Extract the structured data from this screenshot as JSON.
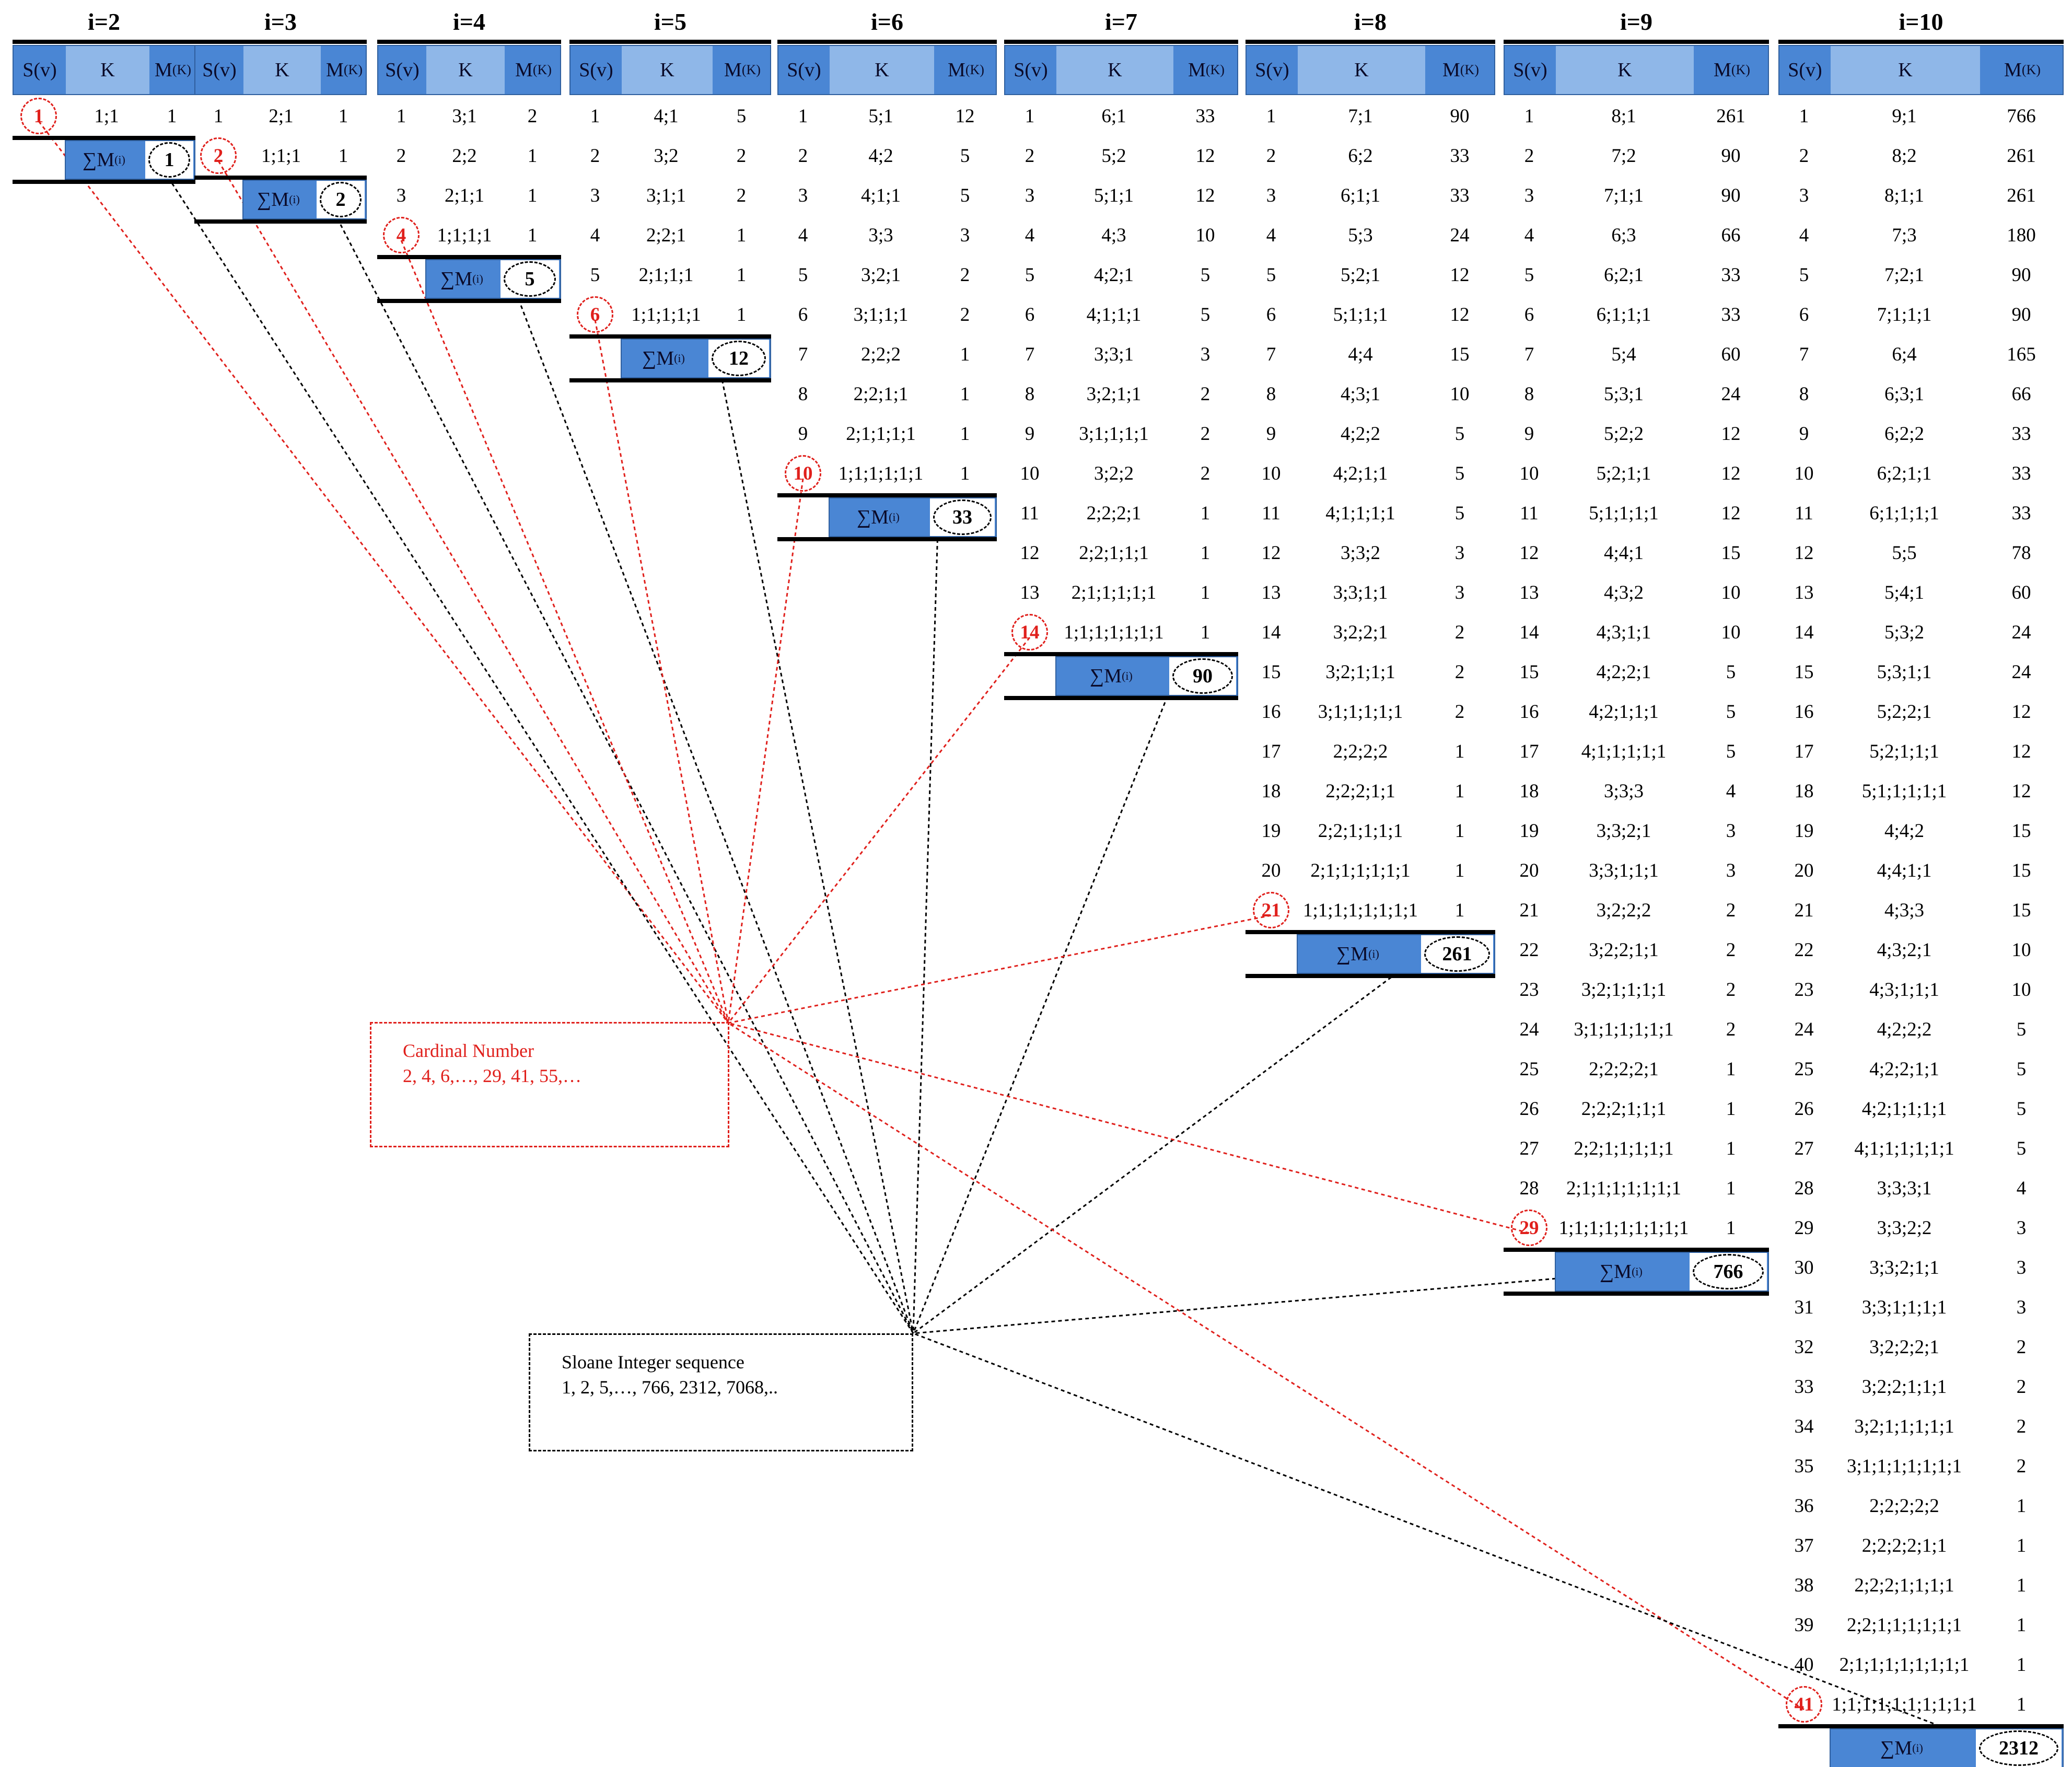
{
  "headers": {
    "sv": "S(v)",
    "k": "K",
    "mk_main": "M",
    "mk_sub": "(K)",
    "sum_main": "∑M",
    "sum_sub": "(i)"
  },
  "cardinal_box": {
    "title": "Cardinal Number",
    "values": "2, 4, 6,…, 29, 41, 55,…"
  },
  "sloane_box": {
    "title": "Sloane Integer sequence",
    "values": "1, 2, 5,…, 766, 2312, 7068,.."
  },
  "colors": {
    "header_dark": "#4a86d4",
    "header_light": "#8fb7e8",
    "red": "#e0201c",
    "black": "#000000"
  },
  "tables": [
    {
      "title": "i=2",
      "cardinal": "1",
      "sum": "1",
      "rows": [
        [
          "1",
          "1;1",
          "1"
        ]
      ]
    },
    {
      "title": "i=3",
      "cardinal": "2",
      "sum": "2",
      "rows": [
        [
          "1",
          "2;1",
          "1"
        ],
        [
          "2",
          "1;1;1",
          "1"
        ]
      ]
    },
    {
      "title": "i=4",
      "cardinal": "4",
      "sum": "5",
      "rows": [
        [
          "1",
          "3;1",
          "2"
        ],
        [
          "2",
          "2;2",
          "1"
        ],
        [
          "3",
          "2;1;1",
          "1"
        ],
        [
          "4",
          "1;1;1;1",
          "1"
        ]
      ]
    },
    {
      "title": "i=5",
      "cardinal": "6",
      "sum": "12",
      "rows": [
        [
          "1",
          "4;1",
          "5"
        ],
        [
          "2",
          "3;2",
          "2"
        ],
        [
          "3",
          "3;1;1",
          "2"
        ],
        [
          "4",
          "2;2;1",
          "1"
        ],
        [
          "5",
          "2;1;1;1",
          "1"
        ],
        [
          "6",
          "1;1;1;1;1",
          "1"
        ]
      ]
    },
    {
      "title": "i=6",
      "cardinal": "10",
      "sum": "33",
      "rows": [
        [
          "1",
          "5;1",
          "12"
        ],
        [
          "2",
          "4;2",
          "5"
        ],
        [
          "3",
          "4;1;1",
          "5"
        ],
        [
          "4",
          "3;3",
          "3"
        ],
        [
          "5",
          "3;2;1",
          "2"
        ],
        [
          "6",
          "3;1;1;1",
          "2"
        ],
        [
          "7",
          "2;2;2",
          "1"
        ],
        [
          "8",
          "2;2;1;1",
          "1"
        ],
        [
          "9",
          "2;1;1;1;1",
          "1"
        ],
        [
          "10",
          "1;1;1;1;1;1",
          "1"
        ]
      ]
    },
    {
      "title": "i=7",
      "cardinal": "14",
      "sum": "90",
      "rows": [
        [
          "1",
          "6;1",
          "33"
        ],
        [
          "2",
          "5;2",
          "12"
        ],
        [
          "3",
          "5;1;1",
          "12"
        ],
        [
          "4",
          "4;3",
          "10"
        ],
        [
          "5",
          "4;2;1",
          "5"
        ],
        [
          "6",
          "4;1;1;1",
          "5"
        ],
        [
          "7",
          "3;3;1",
          "3"
        ],
        [
          "8",
          "3;2;1;1",
          "2"
        ],
        [
          "9",
          "3;1;1;1;1",
          "2"
        ],
        [
          "10",
          "3;2;2",
          "2"
        ],
        [
          "11",
          "2;2;2;1",
          "1"
        ],
        [
          "12",
          "2;2;1;1;1",
          "1"
        ],
        [
          "13",
          "2;1;1;1;1;1",
          "1"
        ],
        [
          "14",
          "1;1;1;1;1;1;1",
          "1"
        ]
      ]
    },
    {
      "title": "i=8",
      "cardinal": "21",
      "sum": "261",
      "rows": [
        [
          "1",
          "7;1",
          "90"
        ],
        [
          "2",
          "6;2",
          "33"
        ],
        [
          "3",
          "6;1;1",
          "33"
        ],
        [
          "4",
          "5;3",
          "24"
        ],
        [
          "5",
          "5;2;1",
          "12"
        ],
        [
          "6",
          "5;1;1;1",
          "12"
        ],
        [
          "7",
          "4;4",
          "15"
        ],
        [
          "8",
          "4;3;1",
          "10"
        ],
        [
          "9",
          "4;2;2",
          "5"
        ],
        [
          "10",
          "4;2;1;1",
          "5"
        ],
        [
          "11",
          "4;1;1;1;1",
          "5"
        ],
        [
          "12",
          "3;3;2",
          "3"
        ],
        [
          "13",
          "3;3;1;1",
          "3"
        ],
        [
          "14",
          "3;2;2;1",
          "2"
        ],
        [
          "15",
          "3;2;1;1;1",
          "2"
        ],
        [
          "16",
          "3;1;1;1;1;1",
          "2"
        ],
        [
          "17",
          "2;2;2;2",
          "1"
        ],
        [
          "18",
          "2;2;2;1;1",
          "1"
        ],
        [
          "19",
          "2;2;1;1;1;1",
          "1"
        ],
        [
          "20",
          "2;1;1;1;1;1;1",
          "1"
        ],
        [
          "21",
          "1;1;1;1;1;1;1;1",
          "1"
        ]
      ]
    },
    {
      "title": "i=9",
      "cardinal": "29",
      "sum": "766",
      "rows": [
        [
          "1",
          "8;1",
          "261"
        ],
        [
          "2",
          "7;2",
          "90"
        ],
        [
          "3",
          "7;1;1",
          "90"
        ],
        [
          "4",
          "6;3",
          "66"
        ],
        [
          "5",
          "6;2;1",
          "33"
        ],
        [
          "6",
          "6;1;1;1",
          "33"
        ],
        [
          "7",
          "5;4",
          "60"
        ],
        [
          "8",
          "5;3;1",
          "24"
        ],
        [
          "9",
          "5;2;2",
          "12"
        ],
        [
          "10",
          "5;2;1;1",
          "12"
        ],
        [
          "11",
          "5;1;1;1;1",
          "12"
        ],
        [
          "12",
          "4;4;1",
          "15"
        ],
        [
          "13",
          "4;3;2",
          "10"
        ],
        [
          "14",
          "4;3;1;1",
          "10"
        ],
        [
          "15",
          "4;2;2;1",
          "5"
        ],
        [
          "16",
          "4;2;1;1;1",
          "5"
        ],
        [
          "17",
          "4;1;1;1;1;1",
          "5"
        ],
        [
          "18",
          "3;3;3",
          "4"
        ],
        [
          "19",
          "3;3;2;1",
          "3"
        ],
        [
          "20",
          "3;3;1;1;1",
          "3"
        ],
        [
          "21",
          "3;2;2;2",
          "2"
        ],
        [
          "22",
          "3;2;2;1;1",
          "2"
        ],
        [
          "23",
          "3;2;1;1;1;1",
          "2"
        ],
        [
          "24",
          "3;1;1;1;1;1;1",
          "2"
        ],
        [
          "25",
          "2;2;2;2;1",
          "1"
        ],
        [
          "26",
          "2;2;2;1;1;1",
          "1"
        ],
        [
          "27",
          "2;2;1;1;1;1;1",
          "1"
        ],
        [
          "28",
          "2;1;1;1;1;1;1;1",
          "1"
        ],
        [
          "29",
          "1;1;1;1;1;1;1;1;1",
          "1"
        ]
      ]
    },
    {
      "title": "i=10",
      "cardinal": "41",
      "sum": "2312",
      "rows": [
        [
          "1",
          "9;1",
          "766"
        ],
        [
          "2",
          "8;2",
          "261"
        ],
        [
          "3",
          "8;1;1",
          "261"
        ],
        [
          "4",
          "7;3",
          "180"
        ],
        [
          "5",
          "7;2;1",
          "90"
        ],
        [
          "6",
          "7;1;1;1",
          "90"
        ],
        [
          "7",
          "6;4",
          "165"
        ],
        [
          "8",
          "6;3;1",
          "66"
        ],
        [
          "9",
          "6;2;2",
          "33"
        ],
        [
          "10",
          "6;2;1;1",
          "33"
        ],
        [
          "11",
          "6;1;1;1;1",
          "33"
        ],
        [
          "12",
          "5;5",
          "78"
        ],
        [
          "13",
          "5;4;1",
          "60"
        ],
        [
          "14",
          "5;3;2",
          "24"
        ],
        [
          "15",
          "5;3;1;1",
          "24"
        ],
        [
          "16",
          "5;2;2;1",
          "12"
        ],
        [
          "17",
          "5;2;1;1;1",
          "12"
        ],
        [
          "18",
          "5;1;1;1;1;1",
          "12"
        ],
        [
          "19",
          "4;4;2",
          "15"
        ],
        [
          "20",
          "4;4;1;1",
          "15"
        ],
        [
          "21",
          "4;3;3",
          "15"
        ],
        [
          "22",
          "4;3;2;1",
          "10"
        ],
        [
          "23",
          "4;3;1;1;1",
          "10"
        ],
        [
          "24",
          "4;2;2;2",
          "5"
        ],
        [
          "25",
          "4;2;2;1;1",
          "5"
        ],
        [
          "26",
          "4;2;1;1;1;1",
          "5"
        ],
        [
          "27",
          "4;1;1;1;1;1;1",
          "5"
        ],
        [
          "28",
          "3;3;3;1",
          "4"
        ],
        [
          "29",
          "3;3;2;2",
          "3"
        ],
        [
          "30",
          "3;3;2;1;1",
          "3"
        ],
        [
          "31",
          "3;3;1;1;1;1",
          "3"
        ],
        [
          "32",
          "3;2;2;2;1",
          "2"
        ],
        [
          "33",
          "3;2;2;1;1;1",
          "2"
        ],
        [
          "34",
          "3;2;1;1;1;1;1",
          "2"
        ],
        [
          "35",
          "3;1;1;1;1;1;1;1",
          "2"
        ],
        [
          "36",
          "2;2;2;2;2",
          "1"
        ],
        [
          "37",
          "2;2;2;2;1;1",
          "1"
        ],
        [
          "38",
          "2;2;2;1;1;1;1",
          "1"
        ],
        [
          "39",
          "2;2;1;1;1;1;1;1",
          "1"
        ],
        [
          "40",
          "2;1;1;1;1;1;1;1;1",
          "1"
        ],
        [
          "41",
          "1;1;1;1;1;1;1;1;1;1",
          "1"
        ]
      ]
    }
  ]
}
